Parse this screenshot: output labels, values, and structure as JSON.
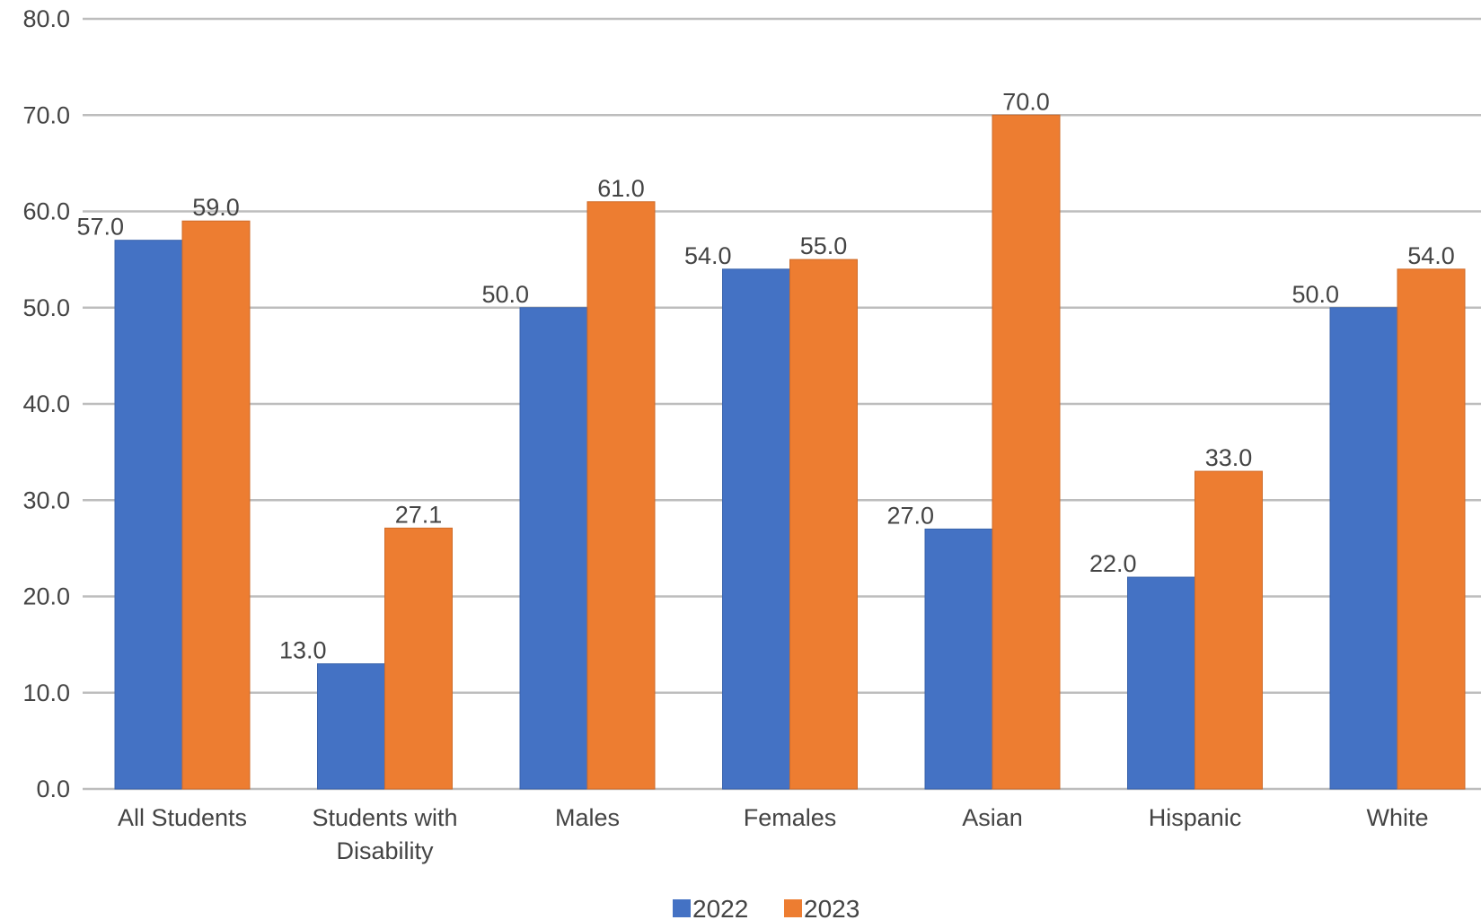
{
  "chart_data": {
    "type": "bar",
    "title": "",
    "xlabel": "",
    "ylabel": "",
    "ylim": [
      0,
      80
    ],
    "y_ticks": [
      "0.0",
      "10.0",
      "20.0",
      "30.0",
      "40.0",
      "50.0",
      "60.0",
      "70.0",
      "80.0"
    ],
    "grid": true,
    "legend_position": "bottom",
    "categories": [
      [
        "All Students"
      ],
      [
        "Students with",
        "Disability"
      ],
      [
        "Males"
      ],
      [
        "Females"
      ],
      [
        "Asian"
      ],
      [
        "Hispanic"
      ],
      [
        "White"
      ]
    ],
    "series": [
      {
        "name": "2022",
        "color": "#4472C4",
        "values": [
          57.0,
          13.0,
          50.0,
          54.0,
          27.0,
          22.0,
          50.0
        ],
        "labels": [
          "57.0",
          "13.0",
          "50.0",
          "54.0",
          "27.0",
          "22.0",
          "50.0"
        ]
      },
      {
        "name": "2023",
        "color": "#ED7D31",
        "values": [
          59.0,
          27.1,
          61.0,
          55.0,
          70.0,
          33.0,
          54.0
        ],
        "labels": [
          "59.0",
          "27.1",
          "61.0",
          "55.0",
          "70.0",
          "33.0",
          "54.0"
        ]
      }
    ]
  }
}
